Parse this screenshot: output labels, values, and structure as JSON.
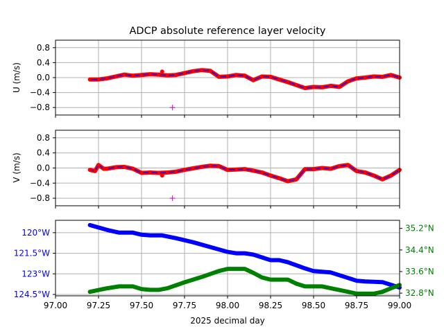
{
  "title": "ADCP absolute reference layer velocity",
  "colors": {
    "trace": "#ff0000",
    "trace_smooth": "#0000ff",
    "marker": "#cc00cc",
    "lon": "#0000ff",
    "lat": "#008000",
    "grid": "#b0b0b0"
  },
  "chart_data": [
    {
      "type": "line",
      "ylabel": "U (m/s)",
      "ylim": [
        -1.0,
        1.0
      ],
      "yticks": [
        0.8,
        0.4,
        0.0,
        -0.4,
        -0.8
      ],
      "ytick_labels": [
        "0.8",
        "0.4",
        "0.0",
        "−0.4",
        "−0.8"
      ],
      "xlim": [
        97.0,
        99.0
      ],
      "grid": true,
      "series": [
        {
          "style": "raw-thick",
          "x": [
            97.2,
            97.25,
            97.3,
            97.35,
            97.4,
            97.45,
            97.5,
            97.55,
            97.6,
            97.65,
            97.7,
            97.75,
            97.8,
            97.85,
            97.9,
            97.95,
            98.0,
            98.05,
            98.1,
            98.15,
            98.2,
            98.25,
            98.3,
            98.35,
            98.4,
            98.45,
            98.5,
            98.55,
            98.6,
            98.65,
            98.7,
            98.75,
            98.8,
            98.85,
            98.9,
            98.95,
            99.0
          ],
          "values": [
            -0.05,
            -0.05,
            -0.02,
            0.03,
            0.08,
            0.05,
            0.07,
            0.09,
            0.08,
            0.06,
            0.07,
            0.12,
            0.17,
            0.2,
            0.18,
            0.02,
            0.03,
            0.07,
            0.05,
            -0.07,
            0.03,
            0.02,
            -0.05,
            -0.12,
            -0.2,
            -0.28,
            -0.25,
            -0.26,
            -0.22,
            -0.25,
            -0.1,
            -0.02,
            0.0,
            0.03,
            0.02,
            0.07,
            0.0
          ]
        },
        {
          "style": "spike",
          "x": [
            97.62
          ],
          "values": [
            0.16
          ]
        },
        {
          "style": "marker",
          "x": [
            97.68
          ],
          "values": [
            -0.8
          ]
        }
      ],
      "xticks": [
        97.0,
        97.25,
        97.5,
        97.75,
        98.0,
        98.25,
        98.5,
        98.75,
        99.0
      ],
      "show_xtick_labels": false
    },
    {
      "type": "line",
      "ylabel": "V (m/s)",
      "ylim": [
        -1.0,
        1.0
      ],
      "yticks": [
        0.8,
        0.4,
        0.0,
        -0.4,
        -0.8
      ],
      "ytick_labels": [
        "0.8",
        "0.4",
        "0.0",
        "−0.4",
        "−0.8"
      ],
      "xlim": [
        97.0,
        99.0
      ],
      "grid": true,
      "series": [
        {
          "style": "raw-thick",
          "x": [
            97.2,
            97.23,
            97.25,
            97.28,
            97.3,
            97.35,
            97.4,
            97.45,
            97.5,
            97.55,
            97.6,
            97.65,
            97.7,
            97.75,
            97.8,
            97.85,
            97.9,
            97.95,
            98.0,
            98.05,
            98.1,
            98.15,
            98.2,
            98.25,
            98.3,
            98.35,
            98.4,
            98.45,
            98.5,
            98.55,
            98.6,
            98.65,
            98.7,
            98.75,
            98.8,
            98.85,
            98.9,
            98.95,
            99.0
          ],
          "values": [
            -0.05,
            -0.08,
            0.08,
            -0.02,
            -0.02,
            0.02,
            0.03,
            -0.02,
            -0.13,
            -0.12,
            -0.13,
            -0.12,
            -0.1,
            -0.05,
            -0.01,
            0.03,
            0.06,
            0.05,
            -0.05,
            -0.04,
            -0.03,
            -0.07,
            -0.12,
            -0.2,
            -0.27,
            -0.35,
            -0.3,
            -0.03,
            -0.03,
            0.0,
            -0.02,
            0.05,
            0.08,
            -0.08,
            -0.12,
            -0.2,
            -0.3,
            -0.2,
            -0.05
          ]
        },
        {
          "style": "spike",
          "x": [
            97.62
          ],
          "values": [
            -0.2
          ]
        },
        {
          "style": "marker",
          "x": [
            97.68
          ],
          "values": [
            -0.8
          ]
        }
      ],
      "xticks": [
        97.0,
        97.25,
        97.5,
        97.75,
        98.0,
        98.25,
        98.5,
        98.75,
        99.0
      ],
      "show_xtick_labels": false
    },
    {
      "type": "line",
      "xlabel": "2025 decimal day",
      "xlim": [
        97.0,
        99.0
      ],
      "xticks": [
        97.0,
        97.25,
        97.5,
        97.75,
        98.0,
        98.25,
        98.5,
        98.75,
        99.0
      ],
      "xtick_labels": [
        "97.00",
        "97.25",
        "97.50",
        "97.75",
        "98.00",
        "98.25",
        "98.50",
        "98.75",
        "99.00"
      ],
      "grid": true,
      "left_axis": {
        "quantity": "longitude",
        "ylim": [
          -124.6,
          -119.1
        ],
        "yticks": [
          -120.0,
          -121.5,
          -123.0,
          -124.5
        ],
        "ytick_labels": [
          "120°W",
          "121.5°W",
          "123°W",
          "124.5°W"
        ],
        "series": {
          "name": "longitude",
          "x": [
            97.2,
            97.3,
            97.37,
            97.45,
            97.5,
            97.55,
            97.62,
            97.7,
            97.8,
            97.9,
            98.0,
            98.05,
            98.1,
            98.15,
            98.2,
            98.25,
            98.3,
            98.35,
            98.45,
            98.5,
            98.6,
            98.7,
            98.75,
            98.8,
            98.9,
            98.95,
            99.0
          ],
          "values": [
            -119.45,
            -119.8,
            -120.0,
            -120.0,
            -120.15,
            -120.2,
            -120.2,
            -120.4,
            -120.7,
            -121.05,
            -121.4,
            -121.5,
            -121.5,
            -121.6,
            -121.8,
            -122.0,
            -122.0,
            -122.15,
            -122.6,
            -122.8,
            -122.9,
            -123.3,
            -123.5,
            -123.55,
            -123.6,
            -123.8,
            -124.0
          ]
        }
      },
      "right_axis": {
        "quantity": "latitude",
        "ylim": [
          32.7,
          35.5
        ],
        "yticks": [
          35.2,
          34.4,
          33.6,
          32.8
        ],
        "ytick_labels": [
          "35.2°N",
          "34.4°N",
          "33.6°N",
          "32.8°N"
        ],
        "series": {
          "name": "latitude",
          "x": [
            97.2,
            97.3,
            97.37,
            97.45,
            97.5,
            97.55,
            97.6,
            97.65,
            97.75,
            97.85,
            97.95,
            98.0,
            98.05,
            98.1,
            98.15,
            98.2,
            98.25,
            98.3,
            98.35,
            98.4,
            98.45,
            98.5,
            98.55,
            98.6,
            98.7,
            98.75,
            98.8,
            98.85,
            98.9,
            98.95,
            99.0
          ],
          "values": [
            32.85,
            32.98,
            33.05,
            33.05,
            32.95,
            32.92,
            32.92,
            32.98,
            33.2,
            33.4,
            33.62,
            33.7,
            33.7,
            33.7,
            33.55,
            33.38,
            33.3,
            33.3,
            33.3,
            33.15,
            33.05,
            33.05,
            33.05,
            32.98,
            32.85,
            32.78,
            32.78,
            32.78,
            32.85,
            32.98,
            33.1
          ]
        }
      }
    }
  ]
}
